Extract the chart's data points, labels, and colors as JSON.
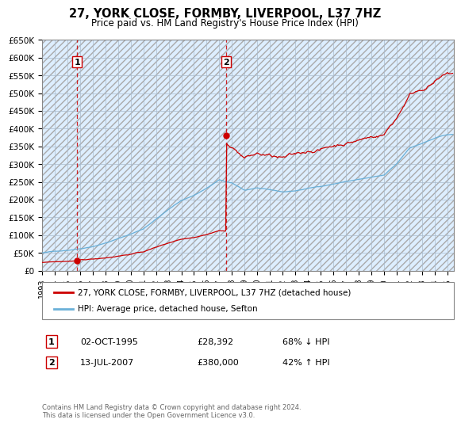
{
  "title": "27, YORK CLOSE, FORMBY, LIVERPOOL, L37 7HZ",
  "subtitle": "Price paid vs. HM Land Registry's House Price Index (HPI)",
  "ylabel_ticks": [
    "£0",
    "£50K",
    "£100K",
    "£150K",
    "£200K",
    "£250K",
    "£300K",
    "£350K",
    "£400K",
    "£450K",
    "£500K",
    "£550K",
    "£600K",
    "£650K"
  ],
  "ylim": [
    0,
    650000
  ],
  "ytick_vals": [
    0,
    50000,
    100000,
    150000,
    200000,
    250000,
    300000,
    350000,
    400000,
    450000,
    500000,
    550000,
    600000,
    650000
  ],
  "sale1_date": 1995.79,
  "sale1_price": 28392,
  "sale2_date": 2007.54,
  "sale2_price": 380000,
  "sale1_label": "1",
  "sale2_label": "2",
  "hpi_color": "#6ab0d8",
  "price_color": "#cc0000",
  "vline_color": "#cc0000",
  "plot_bg_color": "#ddeeff",
  "background_color": "#ffffff",
  "legend_line1": "27, YORK CLOSE, FORMBY, LIVERPOOL, L37 7HZ (detached house)",
  "legend_line2": "HPI: Average price, detached house, Sefton",
  "annotation1_date": "02-OCT-1995",
  "annotation1_price": "£28,392",
  "annotation1_hpi": "68% ↓ HPI",
  "annotation2_date": "13-JUL-2007",
  "annotation2_price": "£380,000",
  "annotation2_hpi": "42% ↑ HPI",
  "footer": "Contains HM Land Registry data © Crown copyright and database right 2024.\nThis data is licensed under the Open Government Licence v3.0.",
  "xlim_start": 1993.0,
  "xlim_end": 2025.5,
  "xtick_years": [
    1993,
    1994,
    1995,
    1996,
    1997,
    1998,
    1999,
    2000,
    2001,
    2002,
    2003,
    2004,
    2005,
    2006,
    2007,
    2008,
    2009,
    2010,
    2011,
    2012,
    2013,
    2014,
    2015,
    2016,
    2017,
    2018,
    2019,
    2020,
    2021,
    2022,
    2023,
    2024,
    2025
  ]
}
